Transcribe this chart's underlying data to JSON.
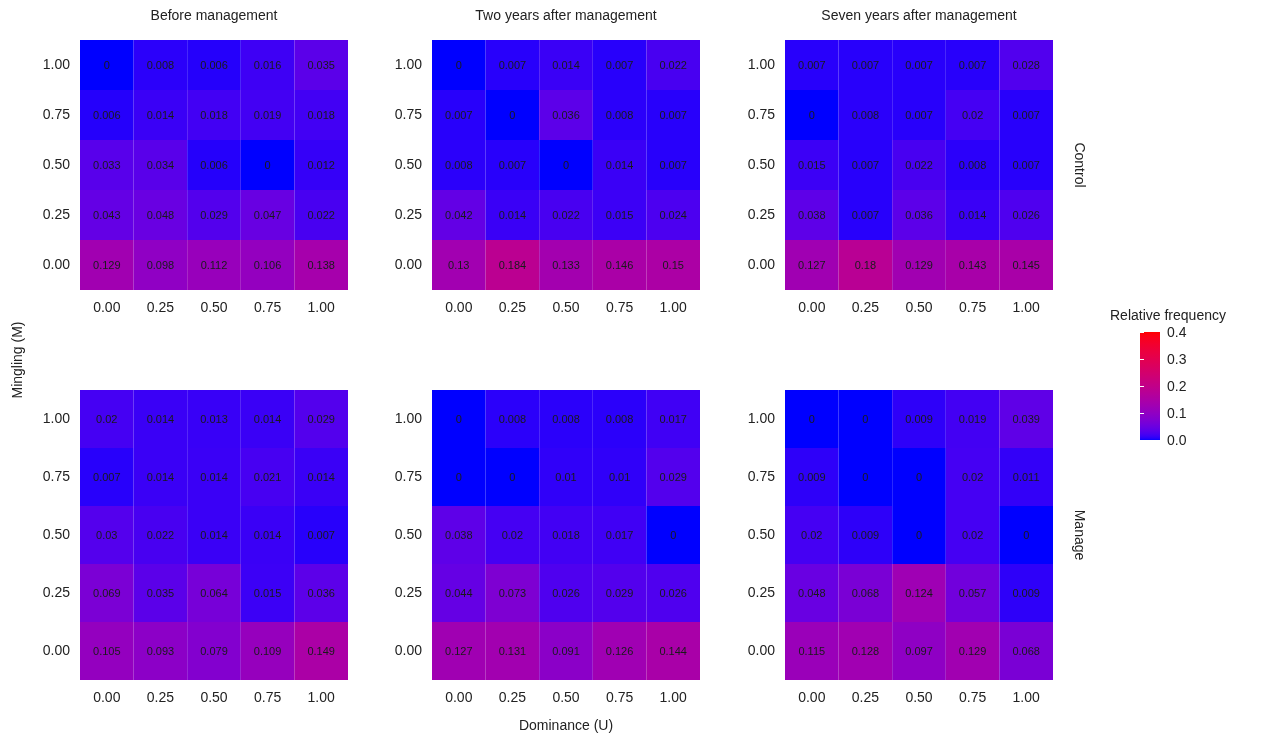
{
  "chart_data": [
    {
      "type": "heatmap",
      "title": "Before management",
      "ylabel": "Mingling (M)",
      "categories": [
        "0.00",
        "0.25",
        "0.50",
        "0.75",
        "1.00"
      ],
      "y_categories": [
        "1.00",
        "0.75",
        "0.50",
        "0.25",
        "0.00"
      ],
      "cells": [
        [
          0,
          0.008,
          0.006,
          0.016,
          0.035
        ],
        [
          0.006,
          0.014,
          0.018,
          0.019,
          0.018
        ],
        [
          0.033,
          0.034,
          0.006,
          0,
          0.012
        ],
        [
          0.043,
          0.048,
          0.029,
          0.047,
          0.022
        ],
        [
          0.129,
          0.098,
          0.112,
          0.106,
          0.138
        ]
      ],
      "data_labels": true
    },
    {
      "type": "heatmap",
      "title": "Two years after management",
      "categories": [
        "0.00",
        "0.25",
        "0.50",
        "0.75",
        "1.00"
      ],
      "y_categories": [
        "1.00",
        "0.75",
        "0.50",
        "0.25",
        "0.00"
      ],
      "cells": [
        [
          0,
          0.007,
          0.014,
          0.007,
          0.022
        ],
        [
          0.007,
          0,
          0.036,
          0.008,
          0.007
        ],
        [
          0.008,
          0.007,
          0,
          0.014,
          0.007
        ],
        [
          0.042,
          0.014,
          0.022,
          0.015,
          0.024
        ],
        [
          0.13,
          0.184,
          0.133,
          0.146,
          0.15
        ]
      ],
      "data_labels": true
    },
    {
      "type": "heatmap",
      "title": "Seven years after management",
      "y2label": "Control",
      "clabel": "Relative frequency",
      "categories": [
        "0.00",
        "0.25",
        "0.50",
        "0.75",
        "1.00"
      ],
      "y_categories": [
        "1.00",
        "0.75",
        "0.50",
        "0.25",
        "0.00"
      ],
      "cells": [
        [
          0.007,
          0.007,
          0.007,
          0.007,
          0.028
        ],
        [
          0,
          0.008,
          0.007,
          0.02,
          0.007
        ],
        [
          0.015,
          0.007,
          0.022,
          0.008,
          0.007
        ],
        [
          0.038,
          0.007,
          0.036,
          0.014,
          0.026
        ],
        [
          0.127,
          0.18,
          0.129,
          0.143,
          0.145
        ]
      ],
      "clim": [
        0,
        0.4
      ],
      "cticks": [
        {
          "value": 0,
          "label": "0.0"
        },
        {
          "value": 0.1,
          "label": "0.1"
        },
        {
          "value": 0.2,
          "label": "0.2"
        },
        {
          "value": 0.3,
          "label": "0.3"
        },
        {
          "value": 0.4,
          "label": "0.4"
        }
      ],
      "data_labels": true
    },
    {
      "type": "heatmap",
      "categories": [
        "0.00",
        "0.25",
        "0.50",
        "0.75",
        "1.00"
      ],
      "y_categories": [
        "1.00",
        "0.75",
        "0.50",
        "0.25",
        "0.00"
      ],
      "cells": [
        [
          0.02,
          0.014,
          0.013,
          0.014,
          0.029
        ],
        [
          0.007,
          0.014,
          0.014,
          0.021,
          0.014
        ],
        [
          0.03,
          0.022,
          0.014,
          0.014,
          0.007
        ],
        [
          0.069,
          0.035,
          0.064,
          0.015,
          0.036
        ],
        [
          0.105,
          0.093,
          0.079,
          0.109,
          0.149
        ]
      ],
      "data_labels": true
    },
    {
      "type": "heatmap",
      "xlabel": "Dominance (U)",
      "categories": [
        "0.00",
        "0.25",
        "0.50",
        "0.75",
        "1.00"
      ],
      "y_categories": [
        "1.00",
        "0.75",
        "0.50",
        "0.25",
        "0.00"
      ],
      "cells": [
        [
          0,
          0.008,
          0.008,
          0.008,
          0.017
        ],
        [
          0,
          0,
          0.01,
          0.01,
          0.029
        ],
        [
          0.038,
          0.02,
          0.018,
          0.017,
          0
        ],
        [
          0.044,
          0.073,
          0.026,
          0.029,
          0.026
        ],
        [
          0.127,
          0.131,
          0.091,
          0.126,
          0.144
        ]
      ],
      "data_labels": true
    },
    {
      "type": "heatmap",
      "y2label": "Manage",
      "categories": [
        "0.00",
        "0.25",
        "0.50",
        "0.75",
        "1.00"
      ],
      "y_categories": [
        "1.00",
        "0.75",
        "0.50",
        "0.25",
        "0.00"
      ],
      "cells": [
        [
          0,
          0,
          0.009,
          0.019,
          0.039
        ],
        [
          0.009,
          0,
          0,
          0.02,
          0.011
        ],
        [
          0.02,
          0.009,
          0,
          0.02,
          0
        ],
        [
          0.048,
          0.068,
          0.124,
          0.057,
          0.009
        ],
        [
          0.115,
          0.128,
          0.097,
          0.129,
          0.068
        ]
      ],
      "data_labels": true
    }
  ]
}
